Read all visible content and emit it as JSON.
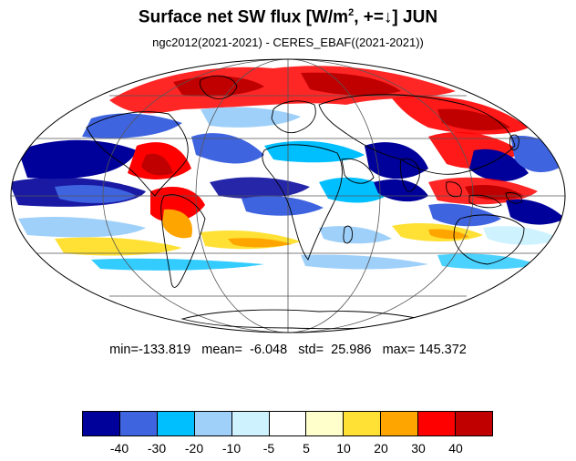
{
  "title": {
    "main": "Surface net SW flux [W/m",
    "sup": "2",
    "rest": ", +=↓]  JUN"
  },
  "subtitle": "ngc2012(2021-2021) - CERES_EBAF((2021-2021))",
  "stats": {
    "min": "-133.819",
    "mean": "-6.048",
    "std": "25.986",
    "max": "145.372",
    "text": "min=-133.819   mean=  -6.048   std=  25.986   max= 145.372"
  },
  "colorbar": {
    "colors": [
      "#00009a",
      "#3f64e0",
      "#00bfff",
      "#9fd0fa",
      "#cff2ff",
      "#ffffff",
      "#ffffcc",
      "#ffe135",
      "#ffa500",
      "#ff0000",
      "#c00000"
    ],
    "labels": [
      "-40",
      "-30",
      "-20",
      "-10",
      "-5",
      "5",
      "10",
      "20",
      "30",
      "40"
    ]
  },
  "map": {
    "projection": "mollweide",
    "colors": {
      "ocean_bg": "#ffffff",
      "grid": "#555555",
      "coast": "#000000"
    }
  }
}
